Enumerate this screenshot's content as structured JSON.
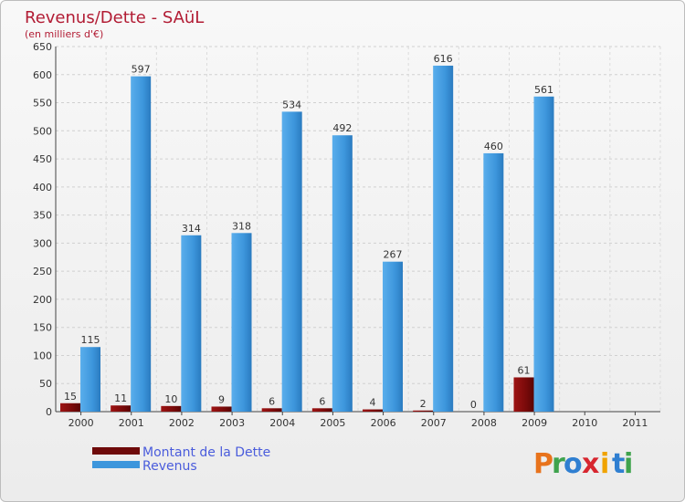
{
  "chart_data": {
    "type": "bar",
    "title": "Revenus/Dette - SAüL",
    "subtitle": "(en milliers d'€)",
    "categories": [
      "2000",
      "2001",
      "2002",
      "2003",
      "2004",
      "2005",
      "2006",
      "2007",
      "2008",
      "2009",
      "2010",
      "2011"
    ],
    "series": [
      {
        "name": "Montant de la Dette",
        "color": "#7a0a0a",
        "values": [
          15,
          11,
          10,
          9,
          6,
          6,
          4,
          2,
          0,
          61,
          null,
          null
        ]
      },
      {
        "name": "Revenus",
        "color": "#3d96dc",
        "values": [
          115,
          597,
          314,
          318,
          534,
          492,
          267,
          616,
          460,
          561,
          null,
          null
        ]
      }
    ],
    "ylim": [
      0,
      650
    ],
    "yticks": [
      0,
      50,
      100,
      150,
      200,
      250,
      300,
      350,
      400,
      450,
      500,
      550,
      600,
      650
    ],
    "grid": true,
    "legend": "bottom-left"
  },
  "logo": {
    "text": "Proxiti",
    "letters": [
      "P",
      "r",
      "o",
      "x",
      "i",
      "t",
      "i"
    ]
  }
}
